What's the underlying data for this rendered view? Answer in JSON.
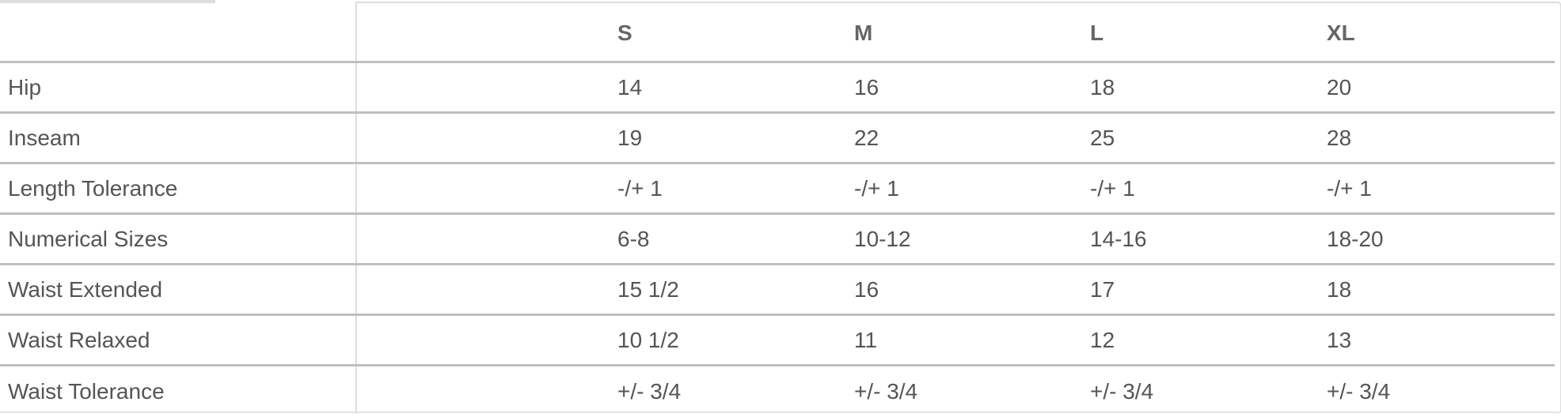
{
  "size_table": {
    "columns": [
      "",
      "S",
      "M",
      "L",
      "XL"
    ],
    "rows": [
      {
        "label": "Hip",
        "values": [
          "14",
          "16",
          "18",
          "20"
        ]
      },
      {
        "label": "Inseam",
        "values": [
          "19",
          "22",
          "25",
          "28"
        ]
      },
      {
        "label": "Length Tolerance",
        "values": [
          "-/+ 1",
          "-/+ 1",
          "-/+ 1",
          "-/+ 1"
        ]
      },
      {
        "label": "Numerical Sizes",
        "values": [
          "6-8",
          "10-12",
          "14-16",
          "18-20"
        ]
      },
      {
        "label": "Waist Extended",
        "values": [
          "15 1/2",
          "16",
          "17",
          "18"
        ]
      },
      {
        "label": "Waist Relaxed",
        "values": [
          "10 1/2",
          "11",
          "12",
          "13"
        ]
      },
      {
        "label": "Waist Tolerance",
        "values": [
          "+/- 3/4",
          "+/- 3/4",
          "+/- 3/4",
          "+/- 3/4"
        ]
      }
    ]
  }
}
